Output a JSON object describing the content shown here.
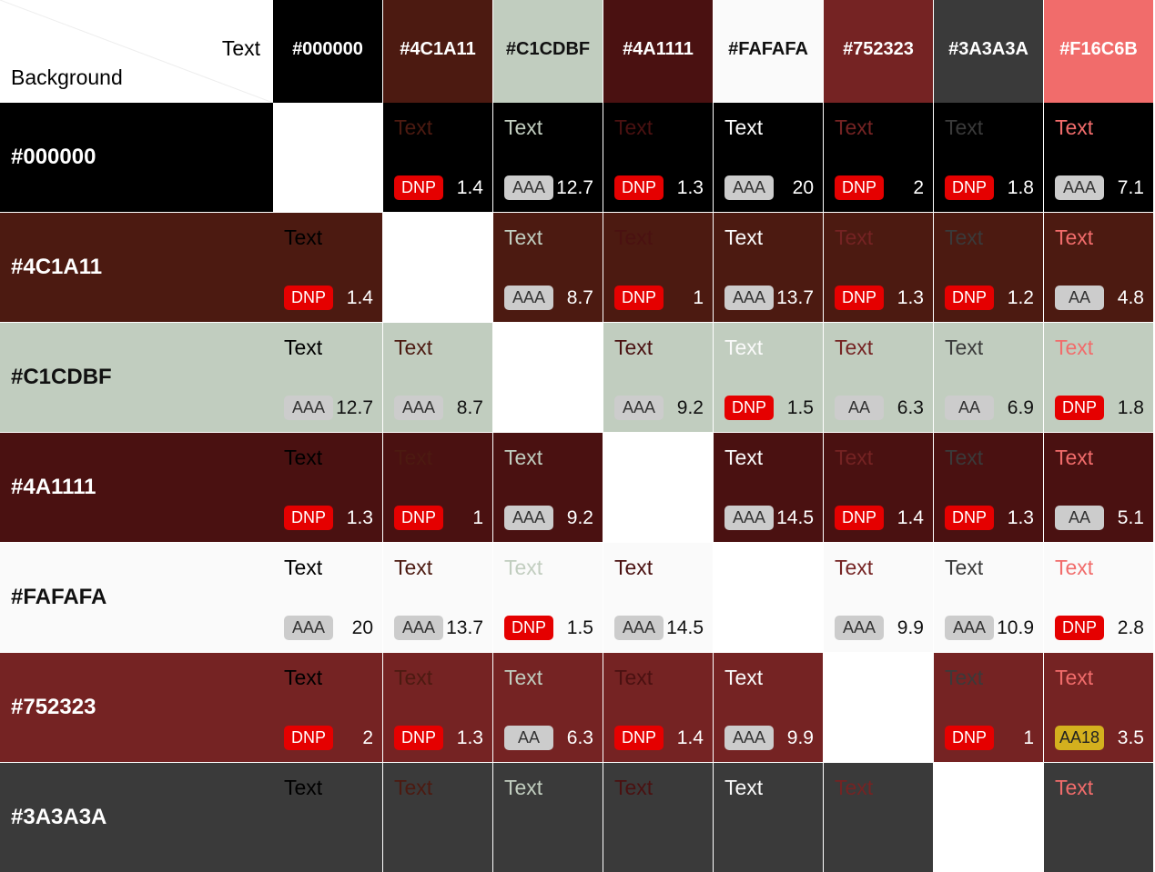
{
  "corner": {
    "text": "Text",
    "background": "Background"
  },
  "columns": [
    "#000000",
    "#4C1A11",
    "#C1CDBF",
    "#4A1111",
    "#FAFAFA",
    "#752323",
    "#3A3A3A",
    "#F16C6B"
  ],
  "rows": [
    {
      "label": "#000000",
      "cells": [
        null,
        {
          "sample": "Text",
          "badge": "DNP",
          "ratio": 1.4
        },
        {
          "sample": "Text",
          "badge": "AAA",
          "ratio": 12.7
        },
        {
          "sample": "Text",
          "badge": "DNP",
          "ratio": 1.3
        },
        {
          "sample": "Text",
          "badge": "AAA",
          "ratio": 20
        },
        {
          "sample": "Text",
          "badge": "DNP",
          "ratio": 2
        },
        {
          "sample": "Text",
          "badge": "DNP",
          "ratio": 1.8
        },
        {
          "sample": "Text",
          "badge": "AAA",
          "ratio": 7.1
        }
      ]
    },
    {
      "label": "#4C1A11",
      "cells": [
        {
          "sample": "Text",
          "badge": "DNP",
          "ratio": 1.4
        },
        null,
        {
          "sample": "Text",
          "badge": "AAA",
          "ratio": 8.7
        },
        {
          "sample": "Text",
          "badge": "DNP",
          "ratio": 1
        },
        {
          "sample": "Text",
          "badge": "AAA",
          "ratio": 13.7
        },
        {
          "sample": "Text",
          "badge": "DNP",
          "ratio": 1.3
        },
        {
          "sample": "Text",
          "badge": "DNP",
          "ratio": 1.2
        },
        {
          "sample": "Text",
          "badge": "AA",
          "ratio": 4.8
        }
      ]
    },
    {
      "label": "#C1CDBF",
      "cells": [
        {
          "sample": "Text",
          "badge": "AAA",
          "ratio": 12.7
        },
        {
          "sample": "Text",
          "badge": "AAA",
          "ratio": 8.7
        },
        null,
        {
          "sample": "Text",
          "badge": "AAA",
          "ratio": 9.2
        },
        {
          "sample": "Text",
          "badge": "DNP",
          "ratio": 1.5
        },
        {
          "sample": "Text",
          "badge": "AA",
          "ratio": 6.3
        },
        {
          "sample": "Text",
          "badge": "AA",
          "ratio": 6.9
        },
        {
          "sample": "Text",
          "badge": "DNP",
          "ratio": 1.8
        }
      ]
    },
    {
      "label": "#4A1111",
      "cells": [
        {
          "sample": "Text",
          "badge": "DNP",
          "ratio": 1.3
        },
        {
          "sample": "Text",
          "badge": "DNP",
          "ratio": 1
        },
        {
          "sample": "Text",
          "badge": "AAA",
          "ratio": 9.2
        },
        null,
        {
          "sample": "Text",
          "badge": "AAA",
          "ratio": 14.5
        },
        {
          "sample": "Text",
          "badge": "DNP",
          "ratio": 1.4
        },
        {
          "sample": "Text",
          "badge": "DNP",
          "ratio": 1.3
        },
        {
          "sample": "Text",
          "badge": "AA",
          "ratio": 5.1
        }
      ]
    },
    {
      "label": "#FAFAFA",
      "cells": [
        {
          "sample": "Text",
          "badge": "AAA",
          "ratio": 20
        },
        {
          "sample": "Text",
          "badge": "AAA",
          "ratio": 13.7
        },
        {
          "sample": "Text",
          "badge": "DNP",
          "ratio": 1.5
        },
        {
          "sample": "Text",
          "badge": "AAA",
          "ratio": 14.5
        },
        null,
        {
          "sample": "Text",
          "badge": "AAA",
          "ratio": 9.9
        },
        {
          "sample": "Text",
          "badge": "AAA",
          "ratio": 10.9
        },
        {
          "sample": "Text",
          "badge": "DNP",
          "ratio": 2.8
        }
      ]
    },
    {
      "label": "#752323",
      "cells": [
        {
          "sample": "Text",
          "badge": "DNP",
          "ratio": 2
        },
        {
          "sample": "Text",
          "badge": "DNP",
          "ratio": 1.3
        },
        {
          "sample": "Text",
          "badge": "AA",
          "ratio": 6.3
        },
        {
          "sample": "Text",
          "badge": "DNP",
          "ratio": 1.4
        },
        {
          "sample": "Text",
          "badge": "AAA",
          "ratio": 9.9
        },
        null,
        {
          "sample": "Text",
          "badge": "DNP",
          "ratio": 1
        },
        {
          "sample": "Text",
          "badge": "AA18",
          "ratio": 3.5
        }
      ]
    },
    {
      "label": "#3A3A3A",
      "cells": [
        {
          "sample": "Text"
        },
        {
          "sample": "Text"
        },
        {
          "sample": "Text"
        },
        {
          "sample": "Text"
        },
        {
          "sample": "Text"
        },
        {
          "sample": "Text"
        },
        null,
        {
          "sample": "Text"
        }
      ]
    }
  ]
}
